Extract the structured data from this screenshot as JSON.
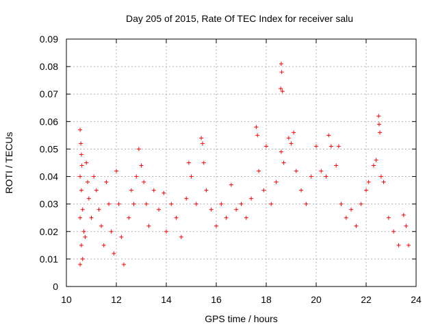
{
  "chart_data": {
    "type": "scatter",
    "title": "Day 205 of 2015, Rate Of TEC Index for receiver salu",
    "xlabel": "GPS time / hours",
    "ylabel": "ROTI / TECUs",
    "xlim": [
      10,
      24
    ],
    "ylim": [
      0,
      0.09
    ],
    "xticks": [
      10,
      12,
      14,
      16,
      18,
      20,
      22,
      24
    ],
    "xtick_labels": [
      "10",
      "12",
      "14",
      "16",
      "18",
      "20",
      "22",
      "24"
    ],
    "yticks": [
      0,
      0.01,
      0.02,
      0.03,
      0.04,
      0.05,
      0.06,
      0.07,
      0.08,
      0.09
    ],
    "ytick_labels": [
      "0",
      "0.01",
      "0.02",
      "0.03",
      "0.04",
      "0.05",
      "0.06",
      "0.07",
      "0.08",
      "0.09"
    ],
    "grid": true,
    "marker": "+",
    "color": "#ff0000",
    "series": [
      {
        "name": "ROTI",
        "points": [
          [
            10.55,
            0.057
          ],
          [
            10.58,
            0.052
          ],
          [
            10.6,
            0.048
          ],
          [
            10.62,
            0.044
          ],
          [
            10.55,
            0.04
          ],
          [
            10.6,
            0.035
          ],
          [
            10.65,
            0.028
          ],
          [
            10.55,
            0.025
          ],
          [
            10.7,
            0.02
          ],
          [
            10.6,
            0.015
          ],
          [
            10.65,
            0.01
          ],
          [
            10.55,
            0.008
          ],
          [
            10.75,
            0.018
          ],
          [
            10.8,
            0.045
          ],
          [
            10.85,
            0.038
          ],
          [
            10.9,
            0.032
          ],
          [
            11.0,
            0.025
          ],
          [
            11.1,
            0.04
          ],
          [
            11.2,
            0.035
          ],
          [
            11.3,
            0.028
          ],
          [
            11.4,
            0.022
          ],
          [
            11.5,
            0.015
          ],
          [
            11.6,
            0.038
          ],
          [
            11.7,
            0.03
          ],
          [
            11.8,
            0.02
          ],
          [
            11.9,
            0.012
          ],
          [
            12.0,
            0.042
          ],
          [
            12.1,
            0.03
          ],
          [
            12.2,
            0.018
          ],
          [
            12.3,
            0.008
          ],
          [
            12.5,
            0.025
          ],
          [
            12.6,
            0.035
          ],
          [
            12.7,
            0.03
          ],
          [
            12.8,
            0.04
          ],
          [
            12.9,
            0.05
          ],
          [
            13.0,
            0.044
          ],
          [
            13.1,
            0.038
          ],
          [
            13.2,
            0.03
          ],
          [
            13.3,
            0.022
          ],
          [
            13.5,
            0.035
          ],
          [
            13.7,
            0.028
          ],
          [
            13.9,
            0.034
          ],
          [
            14.0,
            0.02
          ],
          [
            14.2,
            0.03
          ],
          [
            14.4,
            0.025
          ],
          [
            14.6,
            0.018
          ],
          [
            14.8,
            0.032
          ],
          [
            14.9,
            0.045
          ],
          [
            15.0,
            0.04
          ],
          [
            15.2,
            0.03
          ],
          [
            15.4,
            0.054
          ],
          [
            15.45,
            0.052
          ],
          [
            15.5,
            0.045
          ],
          [
            15.6,
            0.035
          ],
          [
            15.8,
            0.028
          ],
          [
            16.0,
            0.022
          ],
          [
            16.2,
            0.03
          ],
          [
            16.4,
            0.025
          ],
          [
            16.6,
            0.037
          ],
          [
            16.8,
            0.028
          ],
          [
            17.0,
            0.03
          ],
          [
            17.2,
            0.025
          ],
          [
            17.4,
            0.032
          ],
          [
            17.6,
            0.058
          ],
          [
            17.65,
            0.055
          ],
          [
            17.7,
            0.042
          ],
          [
            17.9,
            0.035
          ],
          [
            18.0,
            0.051
          ],
          [
            18.2,
            0.03
          ],
          [
            18.4,
            0.038
          ],
          [
            18.6,
            0.081
          ],
          [
            18.62,
            0.078
          ],
          [
            18.58,
            0.072
          ],
          [
            18.65,
            0.071
          ],
          [
            18.6,
            0.049
          ],
          [
            18.7,
            0.045
          ],
          [
            18.9,
            0.054
          ],
          [
            19.0,
            0.052
          ],
          [
            19.1,
            0.056
          ],
          [
            19.2,
            0.042
          ],
          [
            19.4,
            0.035
          ],
          [
            19.6,
            0.03
          ],
          [
            19.8,
            0.04
          ],
          [
            20.0,
            0.051
          ],
          [
            20.2,
            0.042
          ],
          [
            20.4,
            0.04
          ],
          [
            20.5,
            0.055
          ],
          [
            20.6,
            0.051
          ],
          [
            20.8,
            0.044
          ],
          [
            20.9,
            0.051
          ],
          [
            21.0,
            0.03
          ],
          [
            21.2,
            0.025
          ],
          [
            21.4,
            0.028
          ],
          [
            21.6,
            0.022
          ],
          [
            21.8,
            0.03
          ],
          [
            22.0,
            0.035
          ],
          [
            22.1,
            0.038
          ],
          [
            22.3,
            0.044
          ],
          [
            22.4,
            0.046
          ],
          [
            22.5,
            0.062
          ],
          [
            22.52,
            0.059
          ],
          [
            22.55,
            0.056
          ],
          [
            22.6,
            0.04
          ],
          [
            22.7,
            0.038
          ],
          [
            22.9,
            0.025
          ],
          [
            23.1,
            0.02
          ],
          [
            23.3,
            0.015
          ],
          [
            23.5,
            0.026
          ],
          [
            23.6,
            0.022
          ],
          [
            23.7,
            0.015
          ]
        ]
      }
    ]
  }
}
